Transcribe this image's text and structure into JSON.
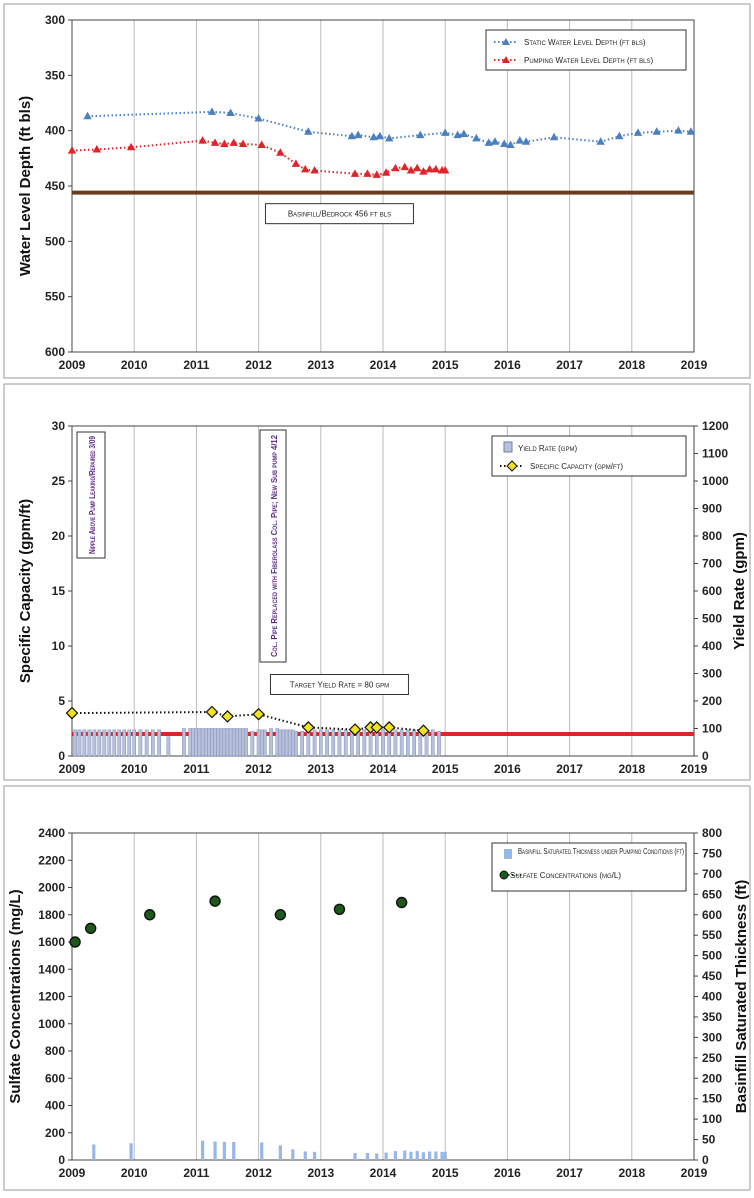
{
  "chart_data": [
    {
      "type": "line",
      "ylabel": "Water Level Depth (ft bls)",
      "ylim": [
        600,
        300
      ],
      "y_inverted": true,
      "xlim": [
        2009,
        2019
      ],
      "x_ticks": [
        "2009",
        "2010",
        "2011",
        "2012",
        "2013",
        "2014",
        "2015",
        "2016",
        "2017",
        "2018",
        "2019"
      ],
      "y_ticks": [
        "300",
        "350",
        "400",
        "450",
        "500",
        "550",
        "600"
      ],
      "grid": "vertical",
      "legend_position": "top-right",
      "series": [
        {
          "name": "Static Water Level Depth (ft bls)",
          "color": "#4a7fc1",
          "marker": "triangle",
          "line_style": "dotted",
          "x": [
            2009.25,
            2011.25,
            2011.55,
            2012.0,
            2012.8,
            2013.5,
            2013.6,
            2013.85,
            2013.95,
            2014.1,
            2014.6,
            2015.0,
            2015.2,
            2015.3,
            2015.5,
            2015.7,
            2015.8,
            2015.95,
            2016.05,
            2016.2,
            2016.3,
            2016.75,
            2017.5,
            2017.8,
            2018.1,
            2018.4,
            2018.75,
            2018.95
          ],
          "y": [
            387,
            383,
            384,
            389,
            401,
            405,
            404,
            406,
            405,
            407,
            404,
            402,
            404,
            403,
            407,
            411,
            410,
            412,
            413,
            409,
            410,
            406,
            410,
            405,
            402,
            401,
            400,
            401
          ]
        },
        {
          "name": "Pumping Water Level Depth (ft bls)",
          "color": "#e0242a",
          "marker": "triangle",
          "line_style": "dotted",
          "x": [
            2009.0,
            2009.4,
            2009.95,
            2011.1,
            2011.3,
            2011.45,
            2011.6,
            2011.75,
            2012.05,
            2012.35,
            2012.6,
            2012.75,
            2012.9,
            2013.55,
            2013.75,
            2013.9,
            2014.05,
            2014.2,
            2014.35,
            2014.45,
            2014.55,
            2014.65,
            2014.75,
            2014.85,
            2014.95,
            2015.0
          ],
          "y": [
            418,
            417,
            415,
            409,
            411,
            412,
            411,
            412,
            413,
            420,
            430,
            435,
            436,
            439,
            439,
            440,
            438,
            434,
            433,
            436,
            434,
            437,
            435,
            435,
            436,
            436
          ]
        }
      ],
      "reference_lines": [
        {
          "y": 456,
          "color": "#6b3d1f"
        }
      ],
      "annotations": [
        {
          "text": "Basinfill/Bedrock 456 ft bls",
          "x": 2013.3,
          "y": 475
        }
      ]
    },
    {
      "type": "bar",
      "ylabel": "Specific Capacity (gpm/ft)",
      "ylim": [
        0,
        30
      ],
      "y_ticks": [
        "0",
        "5",
        "10",
        "15",
        "20",
        "25",
        "30"
      ],
      "y2label": "Yield Rate (gpm)",
      "y2lim": [
        0,
        1200
      ],
      "y2_ticks": [
        "0",
        "100",
        "200",
        "300",
        "400",
        "500",
        "600",
        "700",
        "800",
        "900",
        "1000",
        "1100",
        "1200"
      ],
      "xlim": [
        2009,
        2019
      ],
      "x_ticks": [
        "2009",
        "2010",
        "2011",
        "2012",
        "2013",
        "2014",
        "2015",
        "2016",
        "2017",
        "2018",
        "2019"
      ],
      "grid": "vertical",
      "legend_position": "top-right",
      "series": [
        {
          "name": "Yield Rate (gpm)",
          "type": "bar",
          "axis": "right",
          "color": "#b8c1dc",
          "x": [
            2009.05,
            2009.12,
            2009.2,
            2009.28,
            2009.36,
            2009.44,
            2009.52,
            2009.6,
            2009.68,
            2009.76,
            2009.84,
            2009.92,
            2010.0,
            2010.1,
            2010.2,
            2010.3,
            2010.4,
            2010.55,
            2010.8,
            2010.9,
            2010.95,
            2011.0,
            2011.05,
            2011.1,
            2011.15,
            2011.2,
            2011.25,
            2011.3,
            2011.35,
            2011.4,
            2011.45,
            2011.5,
            2011.55,
            2011.6,
            2011.65,
            2011.7,
            2011.75,
            2011.8,
            2011.9,
            2012.0,
            2012.05,
            2012.1,
            2012.2,
            2012.3,
            2012.35,
            2012.4,
            2012.45,
            2012.5,
            2012.55,
            2012.6,
            2012.7,
            2012.8,
            2012.9,
            2013.0,
            2013.1,
            2013.2,
            2013.3,
            2013.4,
            2013.5,
            2013.6,
            2013.7,
            2013.8,
            2013.9,
            2014.0,
            2014.1,
            2014.2,
            2014.3,
            2014.4,
            2014.5,
            2014.6,
            2014.7,
            2014.8,
            2014.9
          ],
          "y": [
            95,
            95,
            95,
            95,
            95,
            95,
            95,
            95,
            95,
            95,
            95,
            95,
            95,
            95,
            95,
            95,
            95,
            70,
            100,
            100,
            100,
            100,
            100,
            100,
            100,
            100,
            100,
            100,
            100,
            100,
            100,
            100,
            100,
            100,
            100,
            100,
            100,
            100,
            90,
            95,
            95,
            95,
            100,
            100,
            95,
            95,
            95,
            95,
            95,
            90,
            90,
            95,
            95,
            95,
            95,
            95,
            95,
            95,
            95,
            95,
            95,
            95,
            95,
            95,
            95,
            95,
            95,
            95,
            95,
            95,
            95,
            95,
            90
          ]
        },
        {
          "name": "Specific Capacity (gpm/ft)",
          "type": "line",
          "axis": "left",
          "color": "#f3e31d",
          "marker": "diamond",
          "line_style": "dotted",
          "x": [
            2009.0,
            2011.25,
            2011.5,
            2012.0,
            2012.8,
            2013.55,
            2013.8,
            2013.9,
            2014.1,
            2014.65
          ],
          "y": [
            3.9,
            4.0,
            3.6,
            3.8,
            2.6,
            2.4,
            2.6,
            2.6,
            2.6,
            2.3
          ]
        }
      ],
      "reference_lines": [
        {
          "y2": 80,
          "color": "#e0242a"
        }
      ],
      "annotations": [
        {
          "text": "Target Yield Rate = 80 gpm",
          "x": 2013.3,
          "y": 6.5
        },
        {
          "text": "Nipple Above Pump Leaking/Repaired 3/09",
          "vertical": true
        },
        {
          "text": "Col. Pipe Replaced with Fiberglass Col. Pipe; New Sub pump 4/12",
          "vertical": true
        }
      ]
    },
    {
      "type": "scatter",
      "ylabel": "Sulfate Concentrations (mg/L)",
      "ylim": [
        0,
        2400
      ],
      "y_ticks": [
        "0",
        "200",
        "400",
        "600",
        "800",
        "1000",
        "1200",
        "1400",
        "1600",
        "1800",
        "2000",
        "2200",
        "2400"
      ],
      "y2label": "Basinfill Saturated Thickness (ft)",
      "y2lim": [
        0,
        800
      ],
      "y2_ticks": [
        "0",
        "50",
        "100",
        "150",
        "200",
        "250",
        "300",
        "350",
        "400",
        "450",
        "500",
        "550",
        "600",
        "650",
        "700",
        "750",
        "800"
      ],
      "xlim": [
        2009,
        2019
      ],
      "x_ticks": [
        "2009",
        "2010",
        "2011",
        "2012",
        "2013",
        "2014",
        "2015",
        "2016",
        "2017",
        "2018",
        "2019"
      ],
      "grid": "vertical",
      "legend_position": "top-right",
      "series": [
        {
          "name": "Basinfill Saturated Thickness under Pumping Conditions (ft)",
          "type": "bar",
          "axis": "right",
          "color": "#99b7e3",
          "x": [
            2009.35,
            2009.95,
            2011.1,
            2011.3,
            2011.45,
            2011.6,
            2012.05,
            2012.35,
            2012.55,
            2012.75,
            2012.9,
            2013.55,
            2013.75,
            2013.9,
            2014.05,
            2014.2,
            2014.35,
            2014.45,
            2014.55,
            2014.65,
            2014.75,
            2014.85,
            2014.95,
            2015.0
          ],
          "y": [
            38,
            41,
            47,
            45,
            44,
            44,
            43,
            36,
            26,
            21,
            20,
            17,
            17,
            16,
            18,
            22,
            23,
            20,
            22,
            19,
            21,
            21,
            20,
            20
          ]
        },
        {
          "name": "Sulfate Concentrations (mg/L)",
          "type": "scatter",
          "axis": "left",
          "color": "#1c5a1c",
          "marker": "circle",
          "x": [
            2009.05,
            2009.3,
            2010.25,
            2011.3,
            2012.35,
            2013.3,
            2014.3
          ],
          "y": [
            1600,
            1700,
            1800,
            1900,
            1800,
            1840,
            1890
          ]
        }
      ]
    }
  ]
}
